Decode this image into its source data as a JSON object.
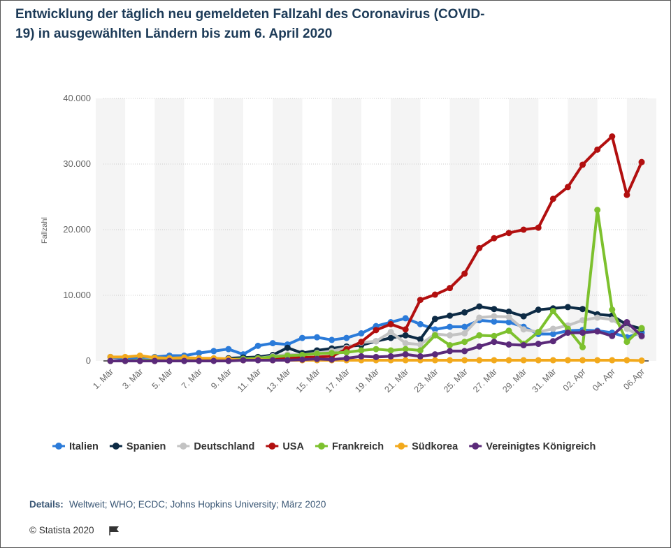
{
  "chart_data": {
    "type": "line",
    "title": [
      "Entwicklung der täglich neu gemeldeten Fallzahl des Coronavirus (COVID-",
      "19) in ausgewählten Ländern bis zum 6. April 2020"
    ],
    "y_label": "Fallzahl",
    "categories": [
      "1. Mär",
      null,
      "3. Mär",
      null,
      "5. Mär",
      null,
      "7. Mär",
      null,
      "9. Mär",
      null,
      "11. Mär",
      null,
      "13. Mär",
      null,
      "15. Mär",
      null,
      "17. Mär",
      null,
      "19. Mär",
      null,
      "21. Mär",
      null,
      "23. Mär",
      null,
      "25. Mär",
      null,
      "27. Mär",
      null,
      "29. Mär",
      null,
      "31. Mär",
      null,
      "02. Apr",
      null,
      "04. Apr",
      null,
      "06.Apr"
    ],
    "ylim": [
      0,
      40000
    ],
    "yticks": [
      0,
      {
        "value": 10000,
        "label": "10.000"
      },
      {
        "value": 20000,
        "label": "20.000"
      },
      {
        "value": 30000,
        "label": "30.000"
      },
      {
        "value": 40000,
        "label": "40.000"
      }
    ],
    "grid": true,
    "series": [
      {
        "name": "Italien",
        "color": "#2b7bd9",
        "values": [
          600,
          300,
          500,
          600,
          800,
          800,
          1200,
          1500,
          1800,
          1000,
          2300,
          2700,
          2500,
          3500,
          3600,
          3200,
          3500,
          4200,
          5300,
          5900,
          6500,
          5600,
          4800,
          5200,
          5200,
          6200,
          6000,
          5900,
          5200,
          4100,
          4100,
          4600,
          4700,
          4600,
          4300,
          3600,
          4300
        ]
      },
      {
        "name": "Spanien",
        "color": "#0d2b45",
        "values": [
          0,
          0,
          0,
          0,
          0,
          0,
          100,
          100,
          400,
          500,
          600,
          900,
          2000,
          1200,
          1600,
          1900,
          2200,
          2400,
          3000,
          3500,
          3900,
          3300,
          6400,
          6900,
          7400,
          8300,
          7900,
          7500,
          6800,
          7800,
          8000,
          8200,
          7900,
          7100,
          6900,
          5500,
          4900
        ]
      },
      {
        "name": "Deutschland",
        "color": "#c3c3c3",
        "values": [
          0,
          0,
          100,
          200,
          100,
          200,
          100,
          300,
          100,
          300,
          400,
          700,
          1000,
          900,
          1200,
          1500,
          2000,
          2800,
          3000,
          4400,
          2700,
          2500,
          4100,
          3900,
          4200,
          6600,
          6800,
          6700,
          4800,
          4400,
          4900,
          5400,
          6200,
          6600,
          6300,
          4900,
          3700
        ]
      },
      {
        "name": "USA",
        "color": "#b20f0f",
        "values": [
          0,
          0,
          0,
          0,
          100,
          100,
          100,
          100,
          100,
          200,
          300,
          300,
          400,
          500,
          600,
          700,
          1800,
          2900,
          4700,
          5600,
          4800,
          9300,
          10100,
          11100,
          13300,
          17200,
          18700,
          19500,
          20000,
          20300,
          24700,
          26500,
          29900,
          32200,
          34200,
          25300,
          30300
        ]
      },
      {
        "name": "Frankreich",
        "color": "#7dc12e",
        "values": [
          0,
          0,
          100,
          100,
          200,
          100,
          200,
          300,
          200,
          300,
          400,
          600,
          800,
          900,
          1100,
          1200,
          1300,
          1600,
          1800,
          1600,
          1800,
          1600,
          3900,
          2400,
          2900,
          3900,
          3800,
          4600,
          2600,
          4400,
          7600,
          4900,
          2100,
          23000,
          7800,
          2900,
          5000
        ]
      },
      {
        "name": "Südkorea",
        "color": "#f2a91c",
        "values": [
          600,
          600,
          800,
          500,
          400,
          500,
          400,
          400,
          300,
          100,
          200,
          100,
          100,
          100,
          100,
          100,
          100,
          100,
          100,
          100,
          100,
          100,
          100,
          100,
          100,
          100,
          100,
          100,
          100,
          100,
          100,
          100,
          100,
          100,
          100,
          100,
          50
        ]
      },
      {
        "name": "Vereinigtes Königreich",
        "color": "#5b2a7a",
        "values": [
          0,
          0,
          0,
          0,
          0,
          0,
          0,
          0,
          0,
          100,
          100,
          100,
          100,
          200,
          300,
          200,
          400,
          700,
          600,
          700,
          1000,
          700,
          1000,
          1500,
          1500,
          2200,
          2900,
          2500,
          2400,
          2600,
          3000,
          4300,
          4300,
          4500,
          3800,
          5900,
          3800
        ]
      }
    ],
    "details_label": "Details:",
    "details": "Weltweit; WHO; ECDC; Johns Hopkins University; März 2020",
    "copyright": "© Statista 2020"
  }
}
